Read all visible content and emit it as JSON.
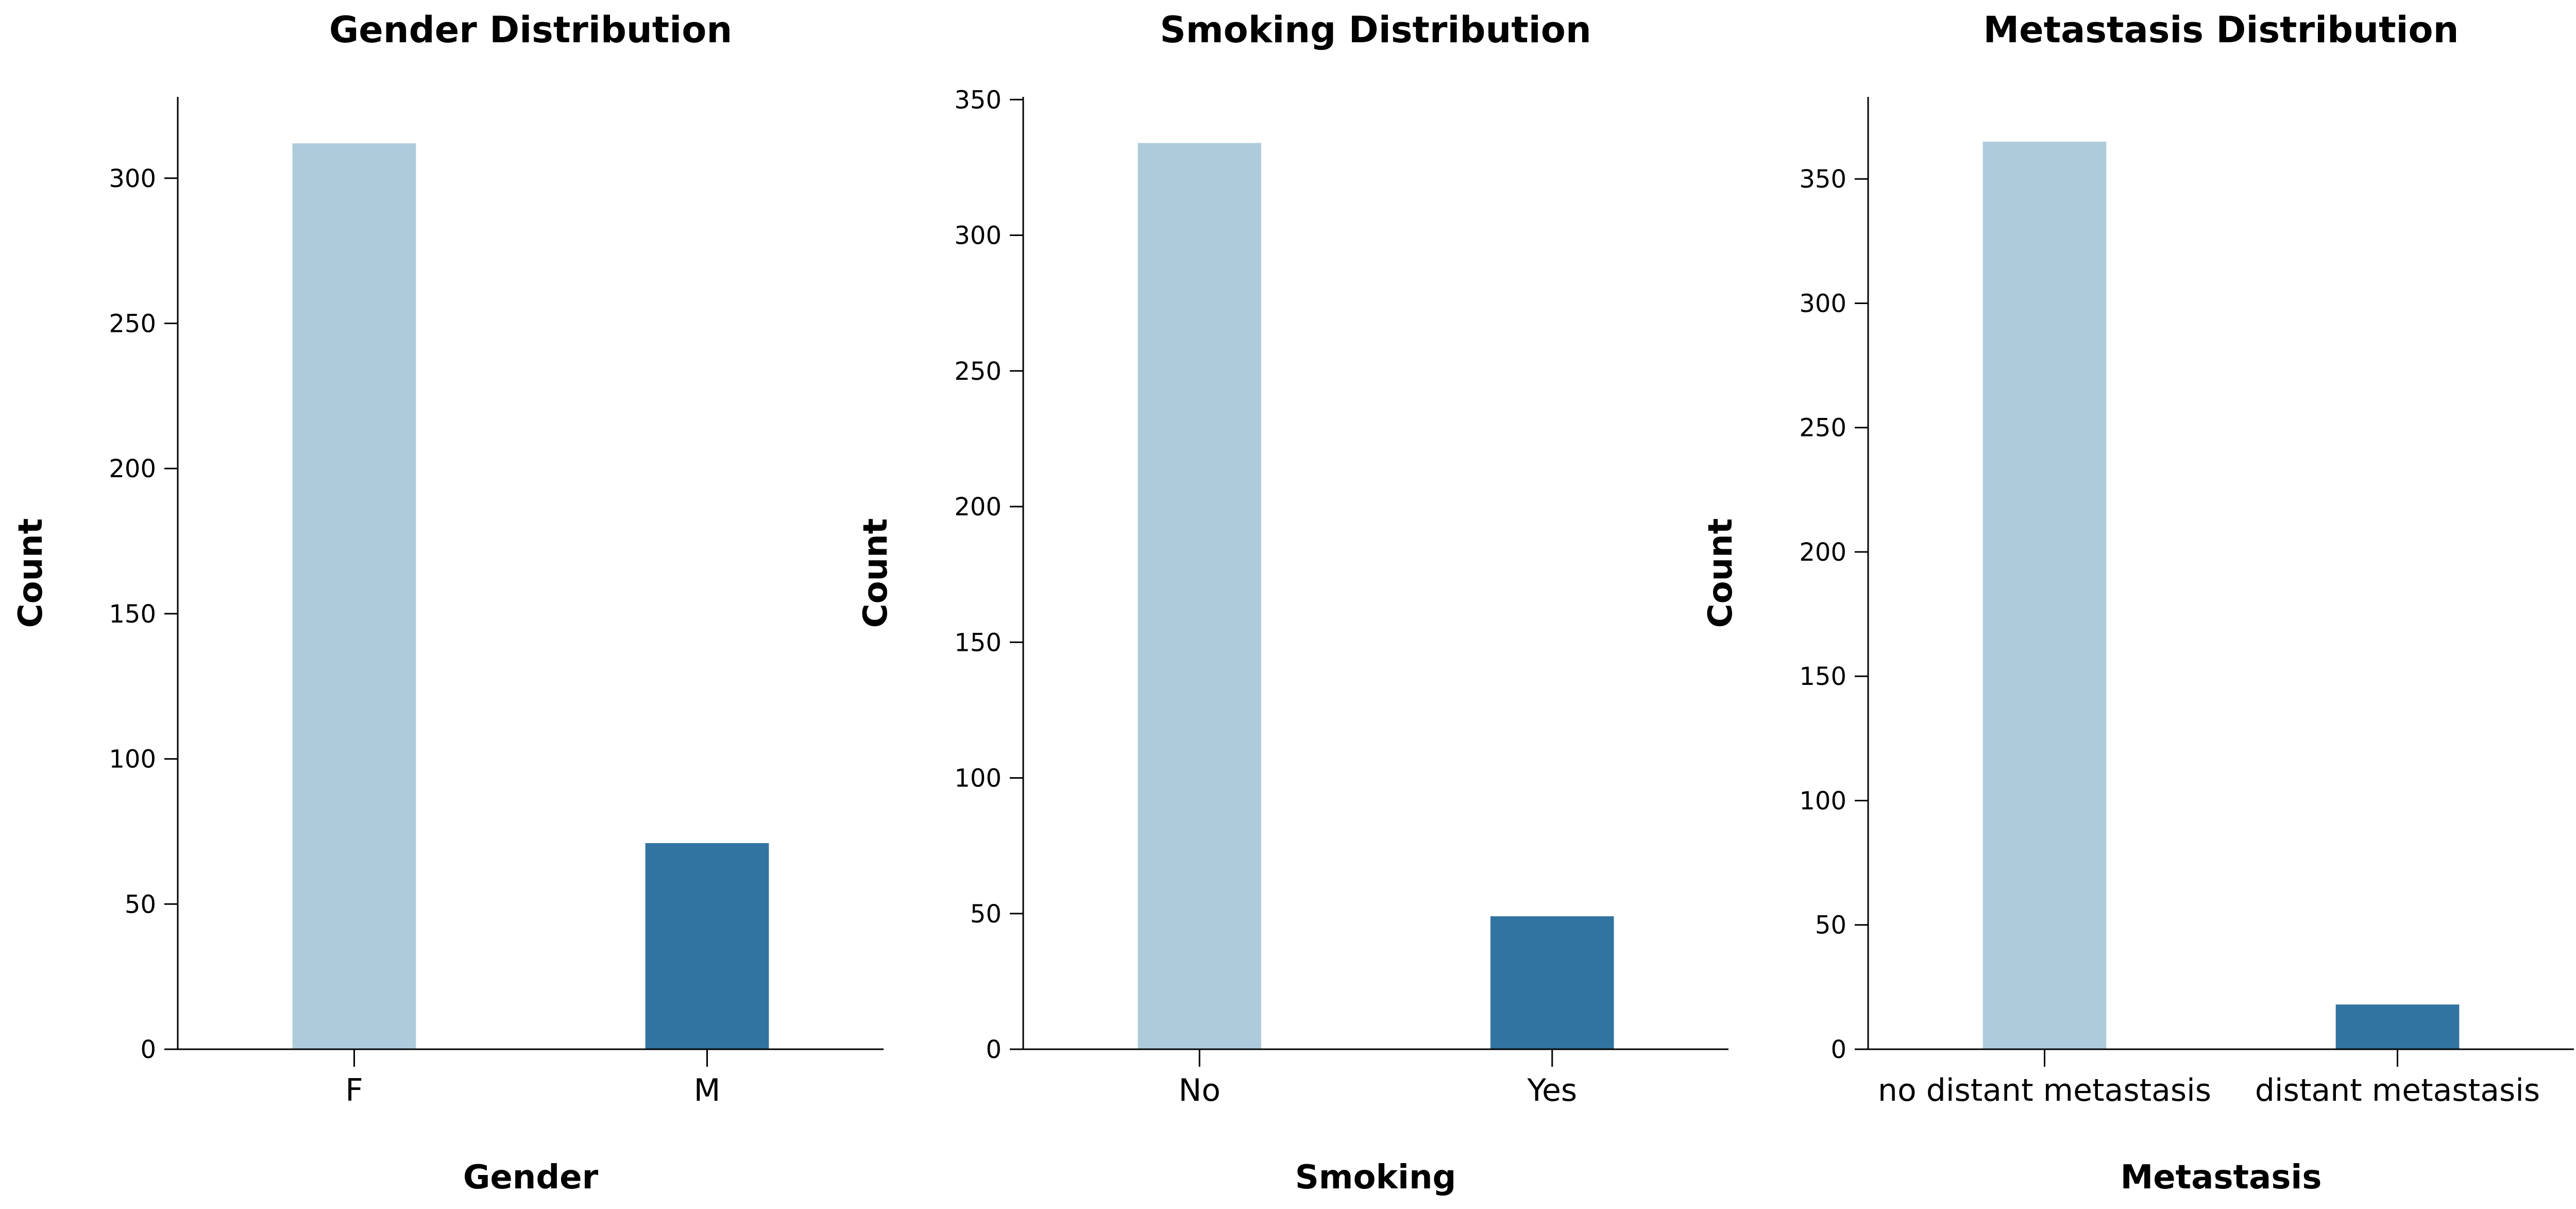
{
  "chart_data": [
    {
      "type": "bar",
      "title": "Gender Distribution",
      "xlabel": "Gender",
      "ylabel": "Count",
      "categories": [
        "F",
        "M"
      ],
      "values": [
        312,
        71
      ],
      "colors": [
        "#aecbdc",
        "#3274a1"
      ],
      "ylim": [
        0,
        328
      ],
      "yticks": [
        0,
        50,
        100,
        150,
        200,
        250,
        300
      ],
      "grid": false
    },
    {
      "type": "bar",
      "title": "Smoking Distribution",
      "xlabel": "Smoking",
      "ylabel": "Count",
      "categories": [
        "No",
        "Yes"
      ],
      "values": [
        334,
        49
      ],
      "colors": [
        "#aecbdc",
        "#3274a1"
      ],
      "ylim": [
        0,
        351
      ],
      "yticks": [
        0,
        50,
        100,
        150,
        200,
        250,
        300,
        350
      ],
      "grid": false
    },
    {
      "type": "bar",
      "title": "Metastasis Distribution",
      "xlabel": "Metastasis",
      "ylabel": "Count",
      "categories": [
        "no distant metastasis",
        "distant metastasis"
      ],
      "values": [
        365,
        18
      ],
      "colors": [
        "#aecbdc",
        "#3274a1"
      ],
      "ylim": [
        0,
        383
      ],
      "yticks": [
        0,
        50,
        100,
        150,
        200,
        250,
        300,
        350
      ],
      "grid": false
    }
  ]
}
